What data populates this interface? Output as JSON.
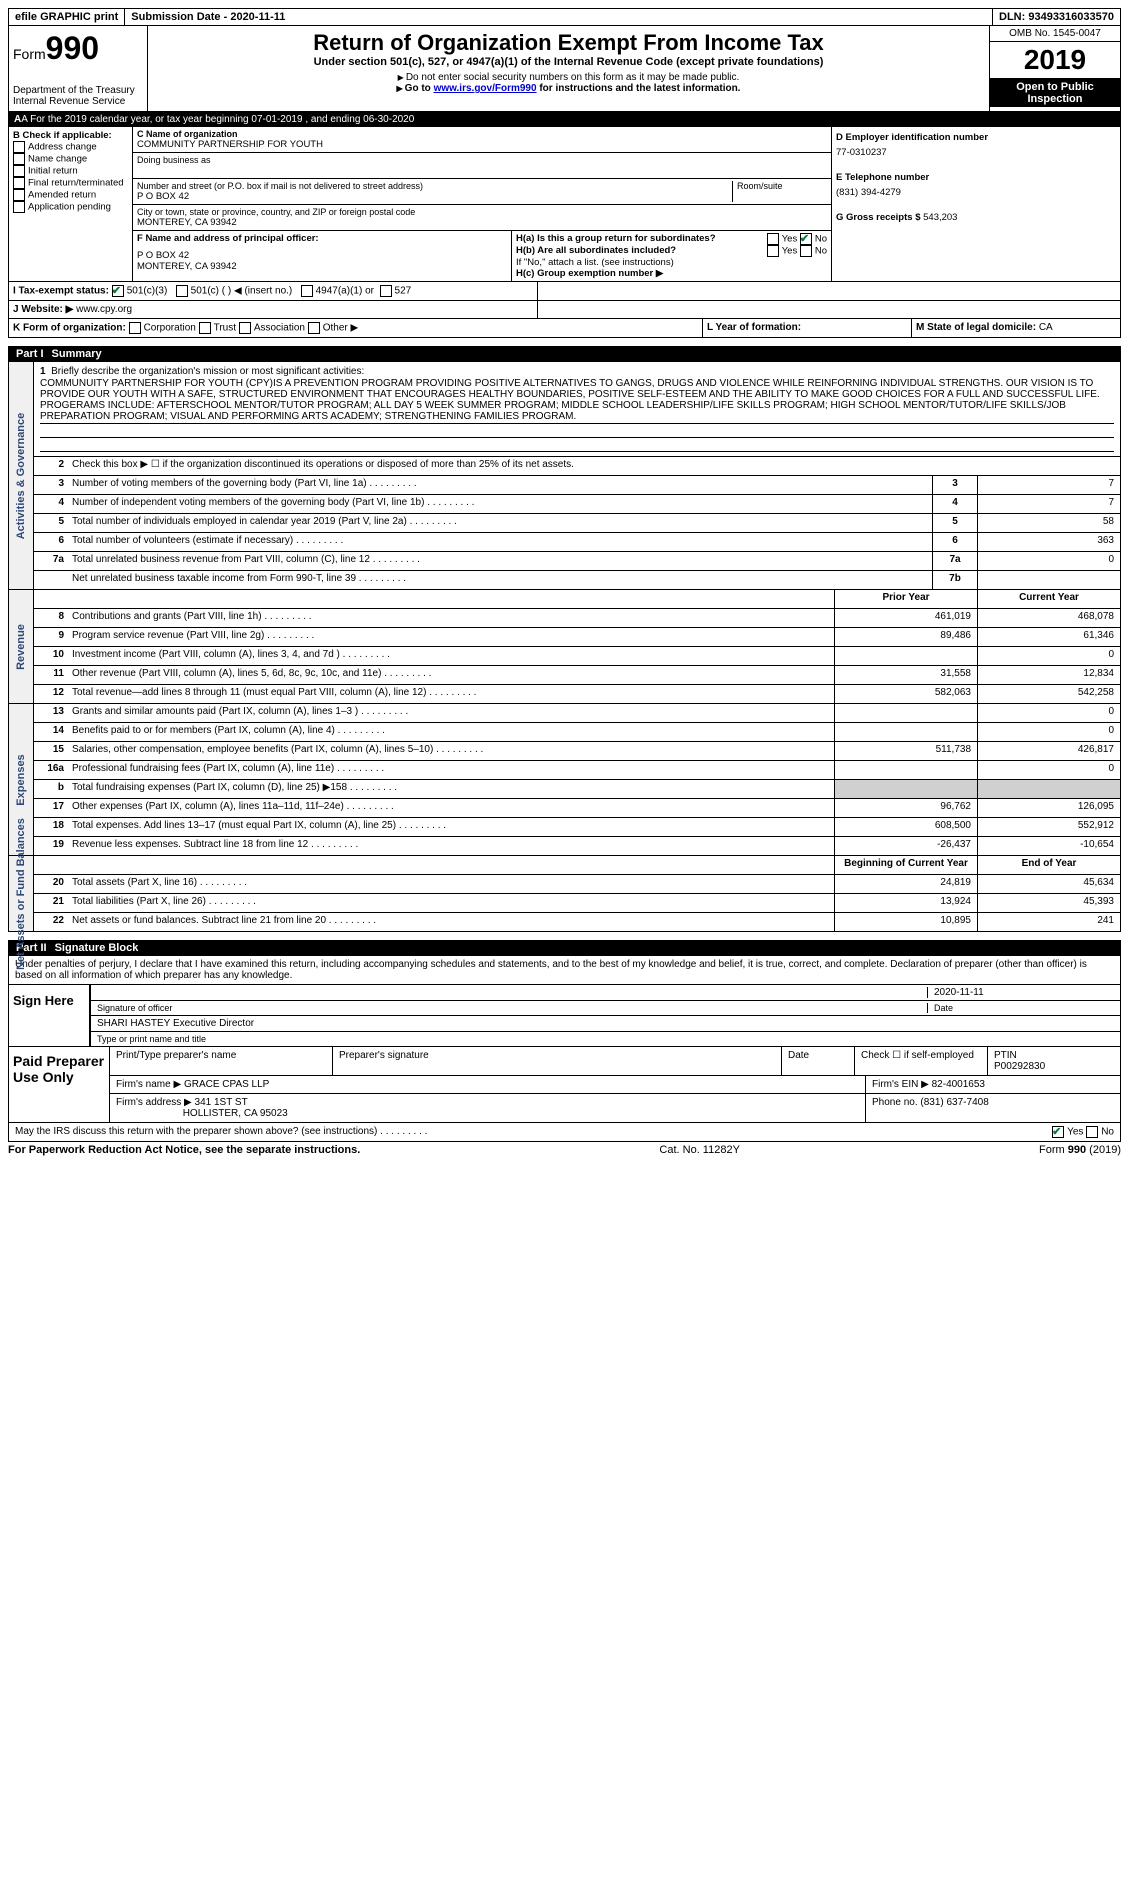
{
  "topbar": {
    "efile": "efile GRAPHIC print",
    "submission_label": "Submission Date - ",
    "submission_date": "2020-11-11",
    "dln_label": "DLN: ",
    "dln": "93493316033570"
  },
  "header": {
    "form_label": "Form",
    "form_number": "990",
    "dept": "Department of the Treasury",
    "irs": "Internal Revenue Service",
    "title": "Return of Organization Exempt From Income Tax",
    "subtitle": "Under section 501(c), 527, or 4947(a)(1) of the Internal Revenue Code (except private foundations)",
    "note1": "Do not enter social security numbers on this form as it may be made public.",
    "note2_prefix": "Go to ",
    "note2_link": "www.irs.gov/Form990",
    "note2_suffix": " for instructions and the latest information.",
    "omb": "OMB No. 1545-0047",
    "year": "2019",
    "open": "Open to Public Inspection"
  },
  "rowA": {
    "text_prefix": "A For the 2019 calendar year, or tax year beginning ",
    "begin": "07-01-2019",
    "mid": " , and ending ",
    "end": "06-30-2020"
  },
  "colB": {
    "heading": "B Check if applicable:",
    "items": [
      "Address change",
      "Name change",
      "Initial return",
      "Final return/terminated",
      "Amended return",
      "Application pending"
    ]
  },
  "colC": {
    "name_label": "C Name of organization",
    "name": "COMMUNITY PARTNERSHIP FOR YOUTH",
    "dba_label": "Doing business as",
    "addr_label": "Number and street (or P.O. box if mail is not delivered to street address)",
    "room_label": "Room/suite",
    "addr": "P O BOX 42",
    "city_label": "City or town, state or province, country, and ZIP or foreign postal code",
    "city": "MONTEREY, CA  93942",
    "officer_label": "F  Name and address of principal officer:",
    "officer_addr1": "P O BOX 42",
    "officer_addr2": "MONTEREY, CA  93942"
  },
  "colD": {
    "ein_label": "D Employer identification number",
    "ein": "77-0310237",
    "phone_label": "E Telephone number",
    "phone": "(831) 394-4279",
    "gross_label": "G Gross receipts $ ",
    "gross": "543,203",
    "ha": "H(a)  Is this a group return for subordinates?",
    "hb": "H(b)  Are all subordinates included?",
    "hb_note": "If \"No,\" attach a list. (see instructions)",
    "hc": "H(c)  Group exemption number ▶",
    "yes": "Yes",
    "no": "No"
  },
  "rowI": {
    "label": "I  Tax-exempt status:",
    "opt1": "501(c)(3)",
    "opt2": "501(c) (  ) ◀ (insert no.)",
    "opt3": "4947(a)(1) or",
    "opt4": "527"
  },
  "rowJ": {
    "label": "J  Website: ▶",
    "value": "www.cpy.org"
  },
  "rowK": {
    "label": "K Form of organization:",
    "opts": [
      "Corporation",
      "Trust",
      "Association",
      "Other ▶"
    ],
    "l_label": "L Year of formation:",
    "m_label": "M State of legal domicile: ",
    "m_value": "CA"
  },
  "part1": {
    "label": "Part I",
    "title": "Summary"
  },
  "summary": {
    "line1_label": "Briefly describe the organization's mission or most significant activities:",
    "mission": "COMMUNUITY PARTNERSHIP FOR YOUTH (CPY)IS A PREVENTION PROGRAM PROVIDING POSITIVE ALTERNATIVES TO GANGS, DRUGS AND VIOLENCE WHILE REINFORNING INDIVIDUAL STRENGTHS. OUR VISION IS TO PROVIDE OUR YOUTH WITH A SAFE, STRUCTURED ENVIRONMENT THAT ENCOURAGES HEALTHY BOUNDARIES, POSITIVE SELF-ESTEEM AND THE ABILITY TO MAKE GOOD CHOICES FOR A FULL AND SUCCESSFUL LIFE. PROGERAMS INCLUDE: AFTERSCHOOL MENTOR/TUTOR PROGRAM; ALL DAY 5 WEEK SUMMER PROGRAM; MIDDLE SCHOOL LEADERSHIP/LIFE SKILLS PROGRAM; HIGH SCHOOL MENTOR/TUTOR/LIFE SKILLS/JOB PREPARATION PROGRAM; VISUAL AND PERFORMING ARTS ACADEMY; STRENGTHENING FAMILIES PROGRAM.",
    "line2": "Check this box ▶ ☐  if the organization discontinued its operations or disposed of more than 25% of its net assets.",
    "lines": [
      {
        "num": "3",
        "desc": "Number of voting members of the governing body (Part VI, line 1a)",
        "box": "3",
        "val": "7"
      },
      {
        "num": "4",
        "desc": "Number of independent voting members of the governing body (Part VI, line 1b)",
        "box": "4",
        "val": "7"
      },
      {
        "num": "5",
        "desc": "Total number of individuals employed in calendar year 2019 (Part V, line 2a)",
        "box": "5",
        "val": "58"
      },
      {
        "num": "6",
        "desc": "Total number of volunteers (estimate if necessary)",
        "box": "6",
        "val": "363"
      },
      {
        "num": "7a",
        "desc": "Total unrelated business revenue from Part VIII, column (C), line 12",
        "box": "7a",
        "val": "0"
      },
      {
        "num": "",
        "desc": "Net unrelated business taxable income from Form 990-T, line 39",
        "box": "7b",
        "val": ""
      }
    ],
    "prior_year": "Prior Year",
    "current_year": "Current Year",
    "begin_year": "Beginning of Current Year",
    "end_year": "End of Year"
  },
  "revenue": [
    {
      "num": "8",
      "desc": "Contributions and grants (Part VIII, line 1h)",
      "prior": "461,019",
      "curr": "468,078"
    },
    {
      "num": "9",
      "desc": "Program service revenue (Part VIII, line 2g)",
      "prior": "89,486",
      "curr": "61,346"
    },
    {
      "num": "10",
      "desc": "Investment income (Part VIII, column (A), lines 3, 4, and 7d )",
      "prior": "",
      "curr": "0"
    },
    {
      "num": "11",
      "desc": "Other revenue (Part VIII, column (A), lines 5, 6d, 8c, 9c, 10c, and 11e)",
      "prior": "31,558",
      "curr": "12,834"
    },
    {
      "num": "12",
      "desc": "Total revenue—add lines 8 through 11 (must equal Part VIII, column (A), line 12)",
      "prior": "582,063",
      "curr": "542,258"
    }
  ],
  "expenses": [
    {
      "num": "13",
      "desc": "Grants and similar amounts paid (Part IX, column (A), lines 1–3 )",
      "prior": "",
      "curr": "0"
    },
    {
      "num": "14",
      "desc": "Benefits paid to or for members (Part IX, column (A), line 4)",
      "prior": "",
      "curr": "0"
    },
    {
      "num": "15",
      "desc": "Salaries, other compensation, employee benefits (Part IX, column (A), lines 5–10)",
      "prior": "511,738",
      "curr": "426,817"
    },
    {
      "num": "16a",
      "desc": "Professional fundraising fees (Part IX, column (A), line 11e)",
      "prior": "",
      "curr": "0"
    },
    {
      "num": "b",
      "desc": "Total fundraising expenses (Part IX, column (D), line 25) ▶158",
      "prior": "shade",
      "curr": "shade"
    },
    {
      "num": "17",
      "desc": "Other expenses (Part IX, column (A), lines 11a–11d, 11f–24e)",
      "prior": "96,762",
      "curr": "126,095"
    },
    {
      "num": "18",
      "desc": "Total expenses. Add lines 13–17 (must equal Part IX, column (A), line 25)",
      "prior": "608,500",
      "curr": "552,912"
    },
    {
      "num": "19",
      "desc": "Revenue less expenses. Subtract line 18 from line 12",
      "prior": "-26,437",
      "curr": "-10,654"
    }
  ],
  "netassets": [
    {
      "num": "20",
      "desc": "Total assets (Part X, line 16)",
      "prior": "24,819",
      "curr": "45,634"
    },
    {
      "num": "21",
      "desc": "Total liabilities (Part X, line 26)",
      "prior": "13,924",
      "curr": "45,393"
    },
    {
      "num": "22",
      "desc": "Net assets or fund balances. Subtract line 21 from line 20",
      "prior": "10,895",
      "curr": "241"
    }
  ],
  "sidelabels": {
    "gov": "Activities & Governance",
    "rev": "Revenue",
    "exp": "Expenses",
    "net": "Net Assets or Fund Balances"
  },
  "part2": {
    "label": "Part II",
    "title": "Signature Block",
    "intro": "Under penalties of perjury, I declare that I have examined this return, including accompanying schedules and statements, and to the best of my knowledge and belief, it is true, correct, and complete. Declaration of preparer (other than officer) is based on all information of which preparer has any knowledge.",
    "sign_here": "Sign Here",
    "sig_officer": "Signature of officer",
    "sig_date": "2020-11-11",
    "date_label": "Date",
    "officer_name": "SHARI HASTEY  Executive Director",
    "type_name": "Type or print name and title",
    "paid_prep": "Paid Preparer Use Only",
    "print_name": "Print/Type preparer's name",
    "prep_sig": "Preparer's signature",
    "check_self": "Check ☐ if self-employed",
    "ptin_label": "PTIN",
    "ptin": "P00292830",
    "firm_name_label": "Firm's name    ▶",
    "firm_name": "GRACE CPAS LLP",
    "firm_ein_label": "Firm's EIN ▶",
    "firm_ein": "82-4001653",
    "firm_addr_label": "Firm's address ▶",
    "firm_addr1": "341 1ST ST",
    "firm_addr2": "HOLLISTER, CA  95023",
    "phone_label": "Phone no. ",
    "phone": "(831) 637-7408",
    "discuss": "May the IRS discuss this return with the preparer shown above? (see instructions)"
  },
  "footer": {
    "paperwork": "For Paperwork Reduction Act Notice, see the separate instructions.",
    "cat": "Cat. No. 11282Y",
    "form": "Form 990 (2019)"
  }
}
